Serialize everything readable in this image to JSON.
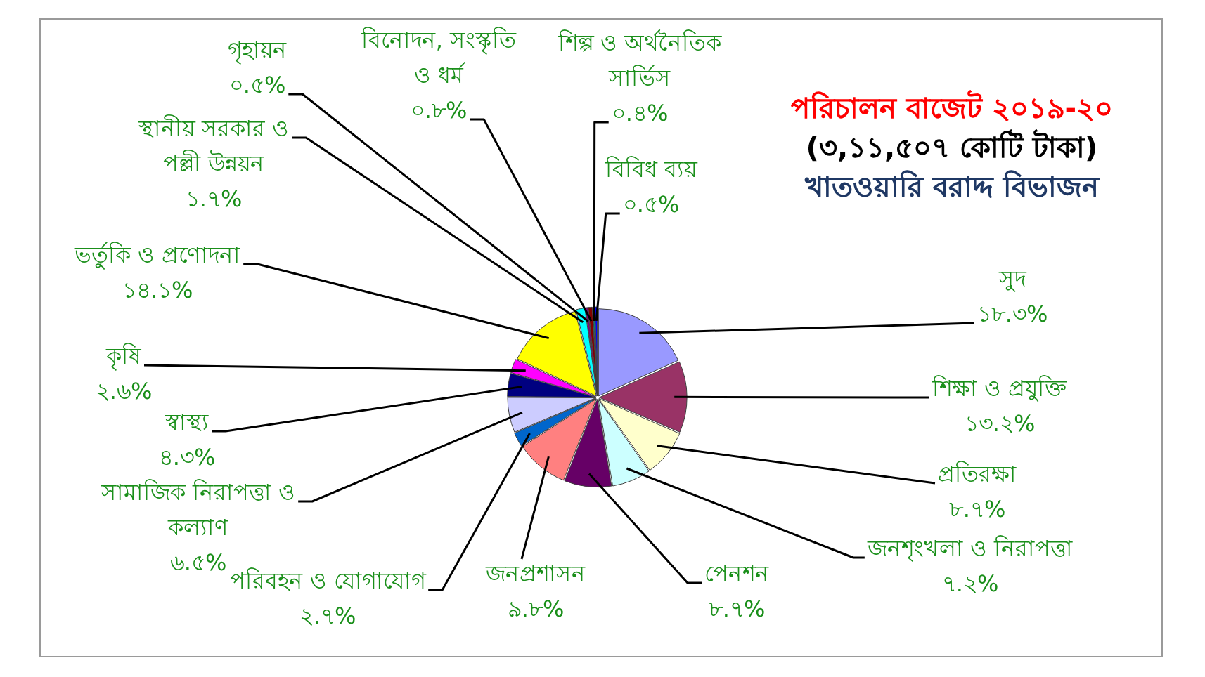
{
  "chart_data": {
    "type": "pie",
    "title": "পরিচালন বাজেট ২০১৯-২০",
    "subtitle": "(৩,১১,৫০৭ কোটি টাকা)\nখাতওয়ারি বরাদ্দ বিভাজন",
    "categories": [
      "সুদ",
      "শিক্ষা ও প্রযুক্তি",
      "প্রতিরক্ষা",
      "জনশৃংখলা ও নিরাপত্তা",
      "পেনশন",
      "জনপ্রশাসন",
      "পরিবহন ও যোগাযোগ",
      "সামাজিক নিরাপত্তা ও কল্যাণ",
      "স্বাস্থ্য",
      "কৃষি",
      "ভর্তুকি ও প্রণোদনা",
      "স্থানীয় সরকার ও পল্লী উন্নয়ন",
      "গৃহায়ন",
      "বিনোদন, সংস্কৃতি ও ধর্ম",
      "শিল্প ও অর্থনৈতিক সার্ভিস",
      "বিবিধ ব্যয়"
    ],
    "values": [
      18.3,
      13.2,
      8.7,
      7.2,
      8.7,
      9.8,
      2.7,
      6.5,
      4.3,
      2.6,
      14.1,
      1.7,
      0.5,
      0.8,
      0.4,
      0.5
    ],
    "value_labels": [
      "১৮.৩%",
      "১৩.২%",
      "৮.৭%",
      "৭.২%",
      "৮.৭%",
      "৯.৮%",
      "২.৭%",
      "৬.৫%",
      "৪.৩%",
      "২.৬%",
      "১৪.১%",
      "১.৭%",
      "০.৫%",
      "০.৮%",
      "০.৪%",
      "০.৫%"
    ],
    "colors": [
      "#9999ff",
      "#993366",
      "#ffffcc",
      "#ccffff",
      "#660066",
      "#ff8080",
      "#0066cc",
      "#ccccff",
      "#000080",
      "#ff00ff",
      "#ffff00",
      "#00ffff",
      "#800080",
      "#800000",
      "#008080",
      "#0000ff"
    ]
  }
}
